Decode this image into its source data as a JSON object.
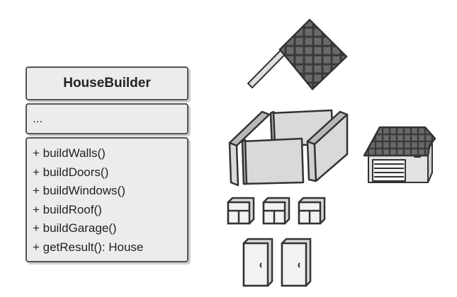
{
  "class_diagram": {
    "class_name": "HouseBuilder",
    "fields": "...",
    "methods": [
      "+ buildWalls()",
      "+ buildDoors()",
      "+ buildWindows()",
      "+ buildRoof()",
      "+ buildGarage()",
      "+ getResult(): House"
    ]
  },
  "illustration": {
    "parts": [
      "roof-icon",
      "walls-icon",
      "garage-icon",
      "window-icon",
      "door-icon"
    ],
    "window_count": 3,
    "door_count": 2
  },
  "colors": {
    "box_fill": "#ececec",
    "stroke": "#333333",
    "roof_tiles": "#555555",
    "wall_fill": "#d9d9d9"
  }
}
